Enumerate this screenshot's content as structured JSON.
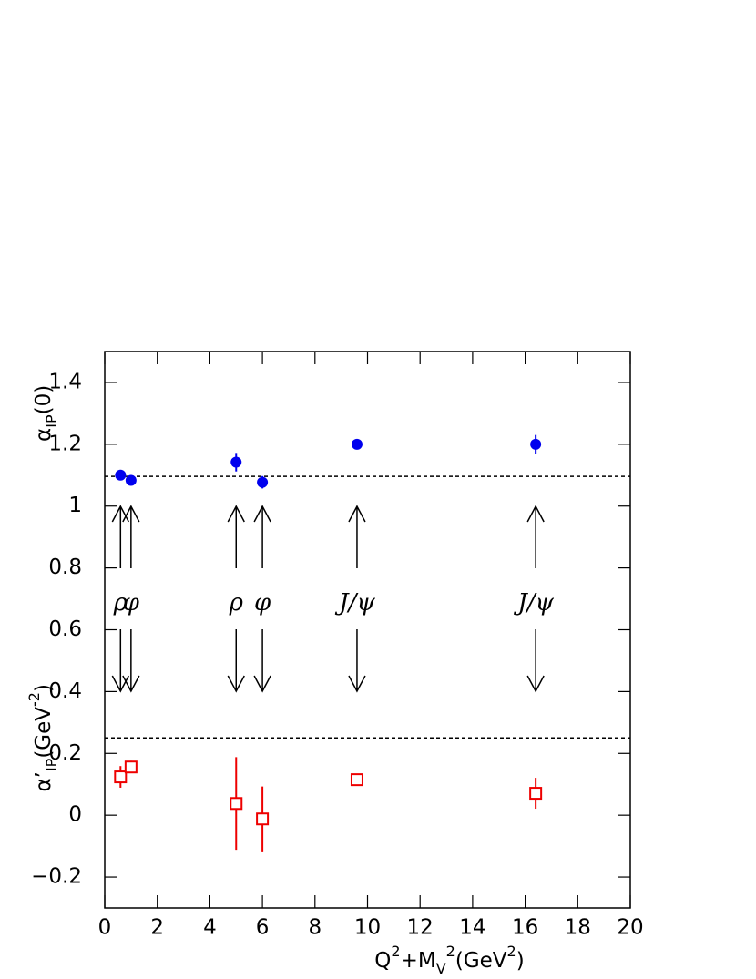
{
  "chart_data": {
    "type": "scatter",
    "xlim": [
      0,
      20
    ],
    "xticks": [
      0,
      2,
      4,
      6,
      8,
      10,
      12,
      14,
      16,
      18,
      20
    ],
    "ylim": [
      -0.3,
      1.5
    ],
    "yticks": [
      {
        "value": -0.2,
        "label": "−0.2"
      },
      0,
      0.2,
      0.4,
      0.6,
      0.8,
      1,
      1.2,
      1.4
    ],
    "x_label": [
      {
        "text": "Q",
        "pos": "base"
      },
      {
        "text": "2",
        "pos": "sup"
      },
      {
        "text": "+M",
        "pos": "base"
      },
      {
        "text": "V",
        "pos": "sub"
      },
      {
        "text": "2",
        "pos": "sup"
      },
      {
        "text": "(GeV",
        "pos": "base"
      },
      {
        "text": "2",
        "pos": "sup"
      },
      {
        "text": ")",
        "pos": "base"
      }
    ],
    "y_label_top": [
      {
        "text": "α",
        "pos": "base"
      },
      {
        "text": "IP",
        "pos": "sub"
      },
      {
        "text": "(0)",
        "pos": "base"
      }
    ],
    "y_label_bottom": [
      {
        "text": "α’",
        "pos": "base"
      },
      {
        "text": "IP",
        "pos": "sub"
      },
      {
        "text": "(GeV",
        "pos": "base"
      },
      {
        "text": "-2",
        "pos": "sup"
      },
      {
        "text": ")",
        "pos": "base"
      }
    ],
    "hlines": [
      1.096,
      0.25
    ],
    "annotations": [
      {
        "text": "ρ",
        "x": 0.6
      },
      {
        "text": "φ",
        "x": 1.0
      },
      {
        "text": "ρ",
        "x": 5.0
      },
      {
        "text": "φ",
        "x": 6.0
      },
      {
        "text": "J/ψ",
        "x": 9.6
      },
      {
        "text": "J/ψ",
        "x": 16.4
      }
    ],
    "series": [
      {
        "name": "αIP(0)",
        "color": "#0000ee",
        "marker": "circle",
        "x": [
          0.6,
          1.0,
          5.0,
          6.0,
          9.6,
          16.4
        ],
        "values": [
          1.1,
          1.083,
          1.142,
          1.077,
          1.2,
          1.2
        ],
        "errors": [
          0.01,
          0.01,
          0.03,
          0.02,
          0.01,
          0.03
        ]
      },
      {
        "name": "α'IP",
        "color": "#ee0000",
        "marker": "square",
        "x": [
          0.6,
          1.0,
          5.0,
          6.0,
          9.6,
          16.4
        ],
        "values": [
          0.124,
          0.156,
          0.038,
          -0.012,
          0.115,
          0.071
        ],
        "errors": [
          0.035,
          0.02,
          0.15,
          0.105,
          0.01,
          0.05
        ]
      }
    ]
  }
}
